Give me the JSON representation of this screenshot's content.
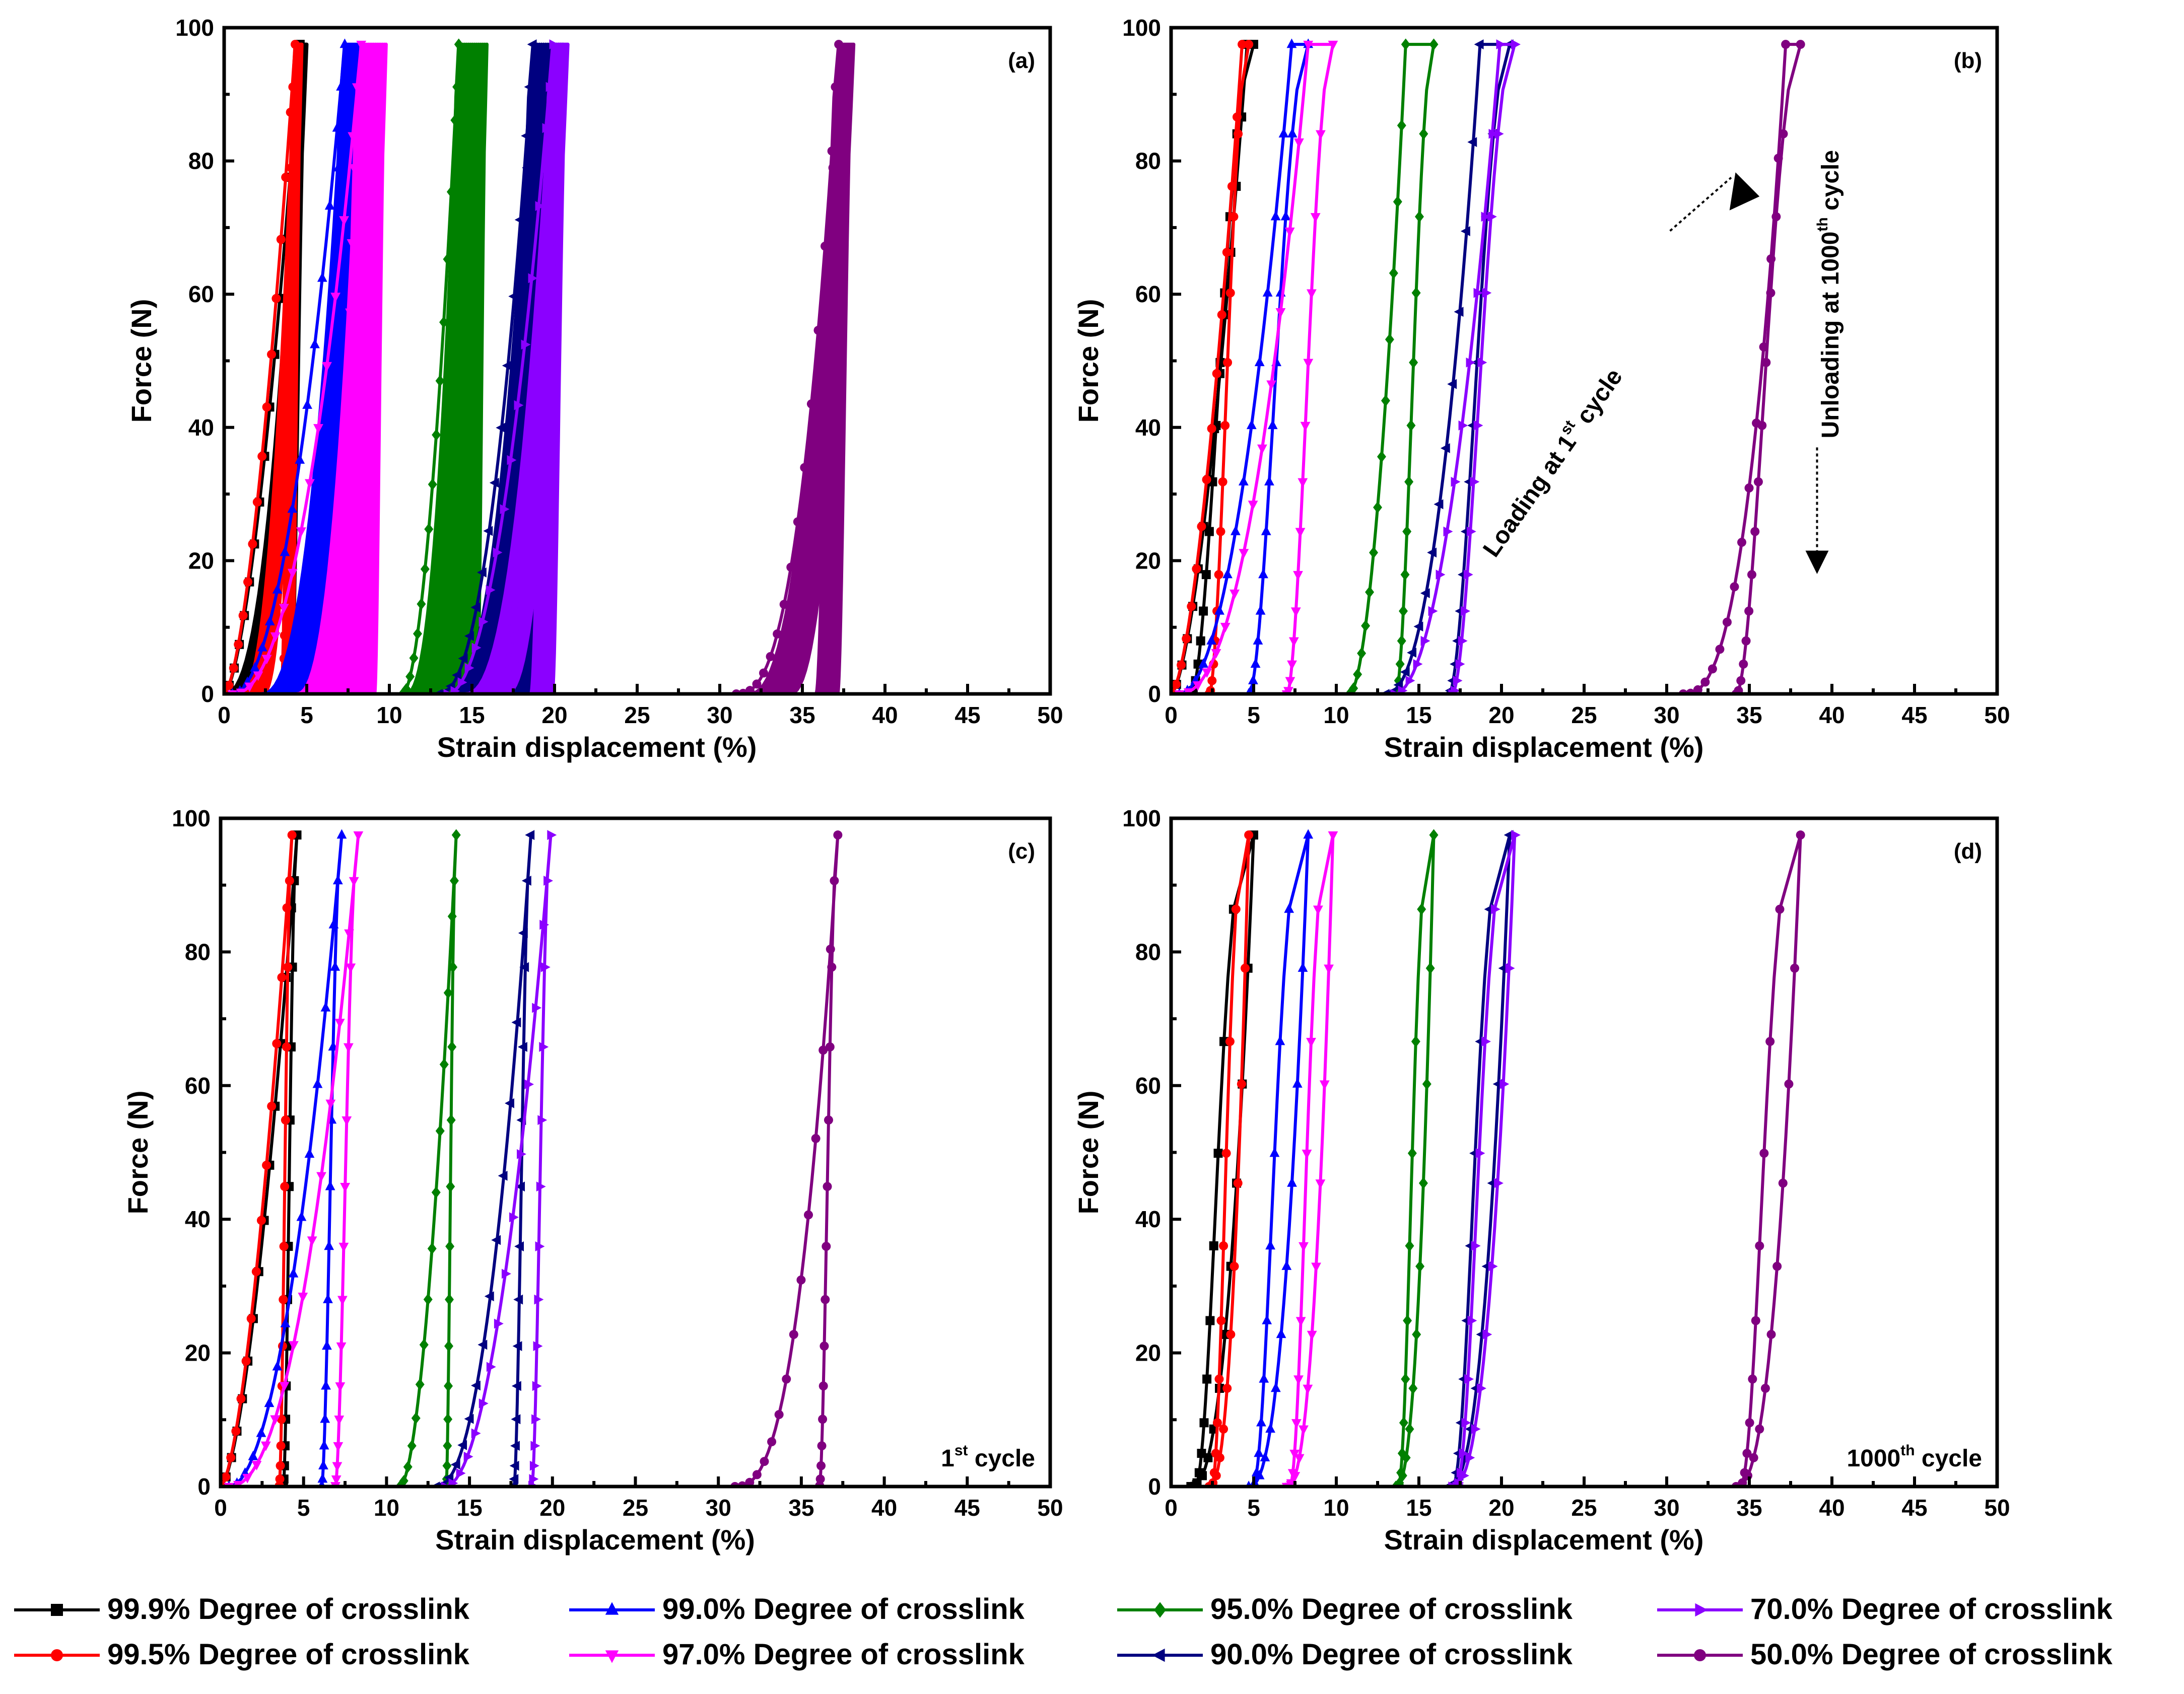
{
  "figure": {
    "panels": [
      {
        "id": "a",
        "label": "(a)",
        "annotation": "",
        "sup": "",
        "rest": ""
      },
      {
        "id": "b",
        "label": "(b)",
        "annotation": "",
        "sup": "",
        "rest": ""
      },
      {
        "id": "c",
        "label": "(c)",
        "annotation": "1st cycle",
        "base": "1",
        "sup": "st",
        "rest": " cycle"
      },
      {
        "id": "d",
        "label": "(d)",
        "annotation": "1000th cycle",
        "base": "1000",
        "sup": "th",
        "rest": " cycle"
      }
    ],
    "annotations_b": {
      "loading": {
        "text": "Loading at 1st cycle",
        "base": "Loading at 1",
        "sup": "st",
        "rest": " cycle"
      },
      "unloading": {
        "text": "Unloading at 1000th cycle",
        "base": "Unloading at 1000",
        "sup": "th",
        "rest": " cycle"
      }
    }
  },
  "chart_data": {
    "type": "line",
    "title": "",
    "xlabel": "Strain displacement (%)",
    "ylabel": "Force (N)",
    "xlim": [
      0,
      50
    ],
    "ylim": [
      0,
      100
    ],
    "xticks": [
      "0",
      "5",
      "10",
      "15",
      "20",
      "25",
      "30",
      "35",
      "40",
      "45",
      "50"
    ],
    "yticks": [
      "0",
      "20",
      "40",
      "60",
      "80",
      "100"
    ],
    "legend_position": "bottom",
    "series": [
      {
        "name": "99.9% Degree of crosslink",
        "color": "#000000",
        "marker": "square",
        "first_cycle_max_strain": 4.6,
        "first_cycle_residual_strain": 0.0,
        "cycle_1000_min_strain": 1.2,
        "cycle_1000_max_strain": 5.0,
        "max_force": 97.5
      },
      {
        "name": "99.5% Degree of crosslink",
        "color": "#ff0000",
        "marker": "circle",
        "first_cycle_max_strain": 4.3,
        "first_cycle_residual_strain": 0.0,
        "cycle_1000_min_strain": 2.3,
        "cycle_1000_max_strain": 4.7,
        "max_force": 97.5
      },
      {
        "name": "99.0% Degree of crosslink",
        "color": "#0000ff",
        "marker": "triangle-up",
        "first_cycle_max_strain": 7.3,
        "first_cycle_residual_strain": 0.5,
        "cycle_1000_min_strain": 4.7,
        "cycle_1000_max_strain": 8.3,
        "max_force": 97.5
      },
      {
        "name": "97.0% Degree of crosslink",
        "color": "#ff00ff",
        "marker": "triangle-down",
        "first_cycle_max_strain": 8.3,
        "first_cycle_residual_strain": 0.5,
        "cycle_1000_min_strain": 7.0,
        "cycle_1000_max_strain": 9.8,
        "max_force": 97.5
      },
      {
        "name": "95.0% Degree of crosslink",
        "color": "#008000",
        "marker": "diamond",
        "first_cycle_max_strain": 14.2,
        "first_cycle_residual_strain": 10.8,
        "cycle_1000_min_strain": 13.6,
        "cycle_1000_max_strain": 15.9,
        "max_force": 97.5
      },
      {
        "name": "90.0% Degree of crosslink",
        "color": "#000080",
        "marker": "triangle-left",
        "first_cycle_max_strain": 18.7,
        "first_cycle_residual_strain": 13.0,
        "cycle_1000_min_strain": 16.8,
        "cycle_1000_max_strain": 20.5,
        "max_force": 97.5
      },
      {
        "name": "70.0% Degree of crosslink",
        "color": "#8b00ff",
        "marker": "triangle-right",
        "first_cycle_max_strain": 19.9,
        "first_cycle_residual_strain": 13.5,
        "cycle_1000_min_strain": 17.0,
        "cycle_1000_max_strain": 20.8,
        "max_force": 97.5
      },
      {
        "name": "50.0% Degree of crosslink",
        "color": "#800080",
        "marker": "circle",
        "first_cycle_max_strain": 37.2,
        "first_cycle_residual_strain": 31.0,
        "cycle_1000_min_strain": 34.2,
        "cycle_1000_max_strain": 38.1,
        "max_force": 97.5
      }
    ]
  }
}
